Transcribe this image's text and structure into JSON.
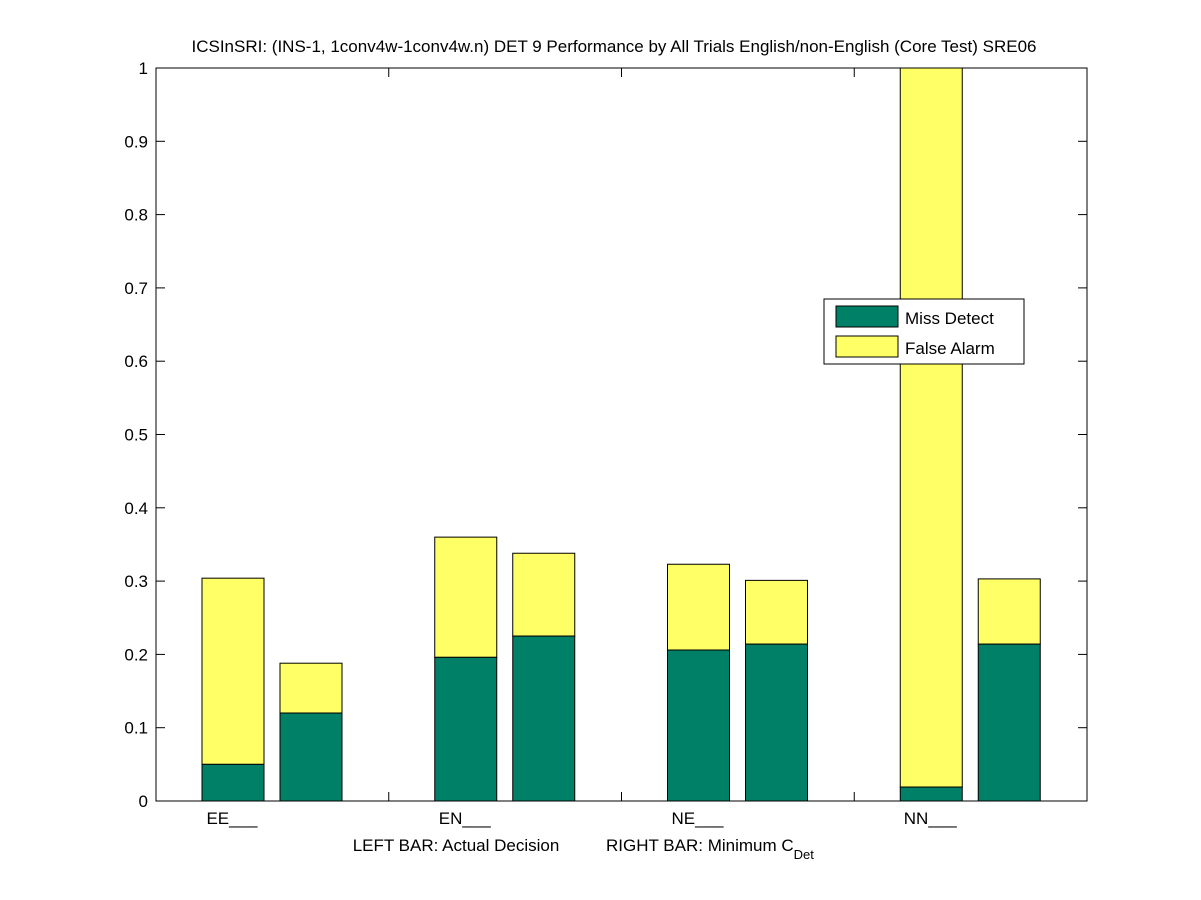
{
  "chart_data": {
    "type": "bar",
    "stacked": true,
    "title": "ICSInSRI: (INS-1, 1conv4w-1conv4w.n) DET 9 Performance by All Trials English/non-English (Core Test) SRE06",
    "xlabel_left": "LEFT BAR: Actual Decision",
    "xlabel_right": "RIGHT BAR: Minimum C",
    "xlabel_right_sub": "Det",
    "ylabel": "",
    "ylim": [
      0,
      1
    ],
    "yticks": [
      0,
      0.1,
      0.2,
      0.3,
      0.4,
      0.5,
      0.6,
      0.7,
      0.8,
      0.9,
      1
    ],
    "ytick_labels": [
      "0",
      "0.1",
      "0.2",
      "0.3",
      "0.4",
      "0.5",
      "0.6",
      "0.7",
      "0.8",
      "0.9",
      "1"
    ],
    "categories": [
      "EE___",
      "EN___",
      "NE___",
      "NN___"
    ],
    "bars_per_category": [
      "Actual Decision",
      "Minimum CDet"
    ],
    "series": [
      {
        "name": "Miss Detect",
        "color": "#008066",
        "actual": [
          0.05,
          0.196,
          0.206,
          0.019
        ],
        "minimum": [
          0.12,
          0.225,
          0.214,
          0.214
        ]
      },
      {
        "name": "False Alarm",
        "color": "#ffff66",
        "actual": [
          0.254,
          0.164,
          0.117,
          0.981
        ],
        "minimum": [
          0.068,
          0.113,
          0.087,
          0.089
        ]
      }
    ],
    "totals": {
      "actual": [
        0.304,
        0.36,
        0.323,
        1.0
      ],
      "minimum": [
        0.188,
        0.338,
        0.301,
        0.303
      ]
    },
    "legend": {
      "entries": [
        "Miss Detect",
        "False Alarm"
      ],
      "placement": "center-right"
    },
    "grid": false
  }
}
